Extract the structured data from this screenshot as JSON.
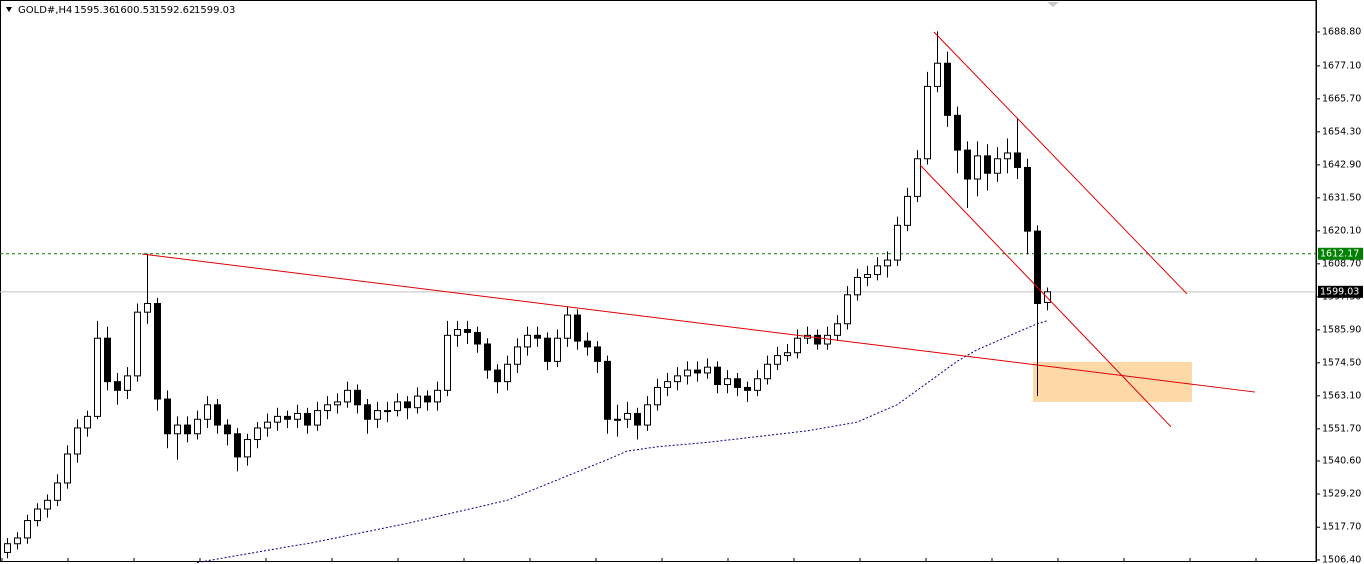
{
  "chart_data": {
    "type": "candlestick",
    "title": "GOLD#,H4",
    "ylim": [
      1505.0,
      1699.85
    ],
    "xlim": [
      -0.7,
      130.9
    ],
    "yticks": [
      {
        "value": 1688.8,
        "label": "1688.80"
      },
      {
        "value": 1677.1,
        "label": "1677.10"
      },
      {
        "value": 1665.7,
        "label": "1665.70"
      },
      {
        "value": 1654.3,
        "label": "1654.30"
      },
      {
        "value": 1642.9,
        "label": "1642.90"
      },
      {
        "value": 1631.5,
        "label": "1631.50"
      },
      {
        "value": 1620.1,
        "label": "1620.10"
      },
      {
        "value": 1608.7,
        "label": "1608.70"
      },
      {
        "value": 1597.3,
        "label": "1597.30"
      },
      {
        "value": 1585.9,
        "label": "1585.90"
      },
      {
        "value": 1574.5,
        "label": "1574.50"
      },
      {
        "value": 1563.1,
        "label": "1563.10"
      },
      {
        "value": 1551.7,
        "label": "1551.70"
      },
      {
        "value": 1540.6,
        "label": "1540.60"
      },
      {
        "value": 1529.2,
        "label": "1529.20"
      },
      {
        "value": 1517.7,
        "label": "1517.70"
      },
      {
        "value": 1506.4,
        "label": "1506.40"
      }
    ],
    "ohlc": [
      [
        1509,
        1514,
        1507,
        1512
      ],
      [
        1512,
        1516,
        1510,
        1514
      ],
      [
        1514,
        1522,
        1512,
        1520
      ],
      [
        1520,
        1526,
        1518,
        1524
      ],
      [
        1524,
        1529,
        1521,
        1527
      ],
      [
        1527,
        1536,
        1525,
        1533
      ],
      [
        1533,
        1546,
        1531,
        1543
      ],
      [
        1543,
        1555,
        1540,
        1552
      ],
      [
        1552,
        1558,
        1549,
        1556
      ],
      [
        1556,
        1589,
        1555,
        1583
      ],
      [
        1583,
        1587,
        1565,
        1568
      ],
      [
        1568,
        1571,
        1560,
        1565
      ],
      [
        1565,
        1573,
        1562,
        1570
      ],
      [
        1570,
        1595,
        1568,
        1592
      ],
      [
        1592,
        1612.2,
        1588,
        1595
      ],
      [
        1595,
        1597,
        1558,
        1562
      ],
      [
        1562,
        1565,
        1545,
        1550
      ],
      [
        1550,
        1556,
        1541,
        1553
      ],
      [
        1553,
        1556,
        1547,
        1550
      ],
      [
        1550,
        1558,
        1548,
        1555
      ],
      [
        1555,
        1563,
        1552,
        1560
      ],
      [
        1560,
        1562,
        1550,
        1553
      ],
      [
        1553,
        1555,
        1546,
        1550
      ],
      [
        1550,
        1552,
        1537,
        1542
      ],
      [
        1542,
        1550,
        1539,
        1548
      ],
      [
        1548,
        1554,
        1545,
        1552
      ],
      [
        1552,
        1557,
        1549,
        1554
      ],
      [
        1554,
        1559,
        1551,
        1556
      ],
      [
        1556,
        1558,
        1552,
        1555
      ],
      [
        1555,
        1560,
        1552,
        1557
      ],
      [
        1557,
        1559,
        1550,
        1553
      ],
      [
        1553,
        1561,
        1551,
        1558
      ],
      [
        1558,
        1563,
        1555,
        1560
      ],
      [
        1560,
        1564,
        1557,
        1561
      ],
      [
        1561,
        1568,
        1559,
        1565
      ],
      [
        1565,
        1567,
        1557,
        1560
      ],
      [
        1560,
        1562,
        1550,
        1555
      ],
      [
        1555,
        1561,
        1552,
        1558
      ],
      [
        1558,
        1561,
        1554,
        1558
      ],
      [
        1558,
        1564,
        1556,
        1561
      ],
      [
        1561,
        1563,
        1555,
        1559
      ],
      [
        1559,
        1566,
        1557,
        1563
      ],
      [
        1563,
        1565,
        1558,
        1561
      ],
      [
        1561,
        1568,
        1558,
        1565
      ],
      [
        1565,
        1589,
        1563,
        1584
      ],
      [
        1584,
        1589,
        1580,
        1586
      ],
      [
        1586,
        1589,
        1581,
        1585
      ],
      [
        1585,
        1587,
        1578,
        1581
      ],
      [
        1581,
        1583,
        1569,
        1572
      ],
      [
        1572,
        1574,
        1564,
        1568
      ],
      [
        1568,
        1577,
        1565,
        1574
      ],
      [
        1574,
        1583,
        1571,
        1580
      ],
      [
        1580,
        1587,
        1577,
        1584
      ],
      [
        1584,
        1587,
        1580,
        1583
      ],
      [
        1583,
        1585,
        1572,
        1575
      ],
      [
        1575,
        1586,
        1573,
        1583
      ],
      [
        1583,
        1594,
        1580,
        1591
      ],
      [
        1591,
        1593,
        1579,
        1582
      ],
      [
        1582,
        1585,
        1577,
        1580
      ],
      [
        1580,
        1582,
        1571,
        1575
      ],
      [
        1575,
        1577,
        1550,
        1555
      ],
      [
        1555,
        1560,
        1549,
        1555
      ],
      [
        1555,
        1561,
        1552,
        1557
      ],
      [
        1557,
        1559,
        1548,
        1553
      ],
      [
        1553,
        1563,
        1551,
        1560
      ],
      [
        1560,
        1569,
        1558,
        1566
      ],
      [
        1566,
        1571,
        1563,
        1568
      ],
      [
        1568,
        1573,
        1565,
        1570
      ],
      [
        1570,
        1575,
        1567,
        1572
      ],
      [
        1572,
        1575,
        1568,
        1571
      ],
      [
        1571,
        1576,
        1569,
        1573
      ],
      [
        1573,
        1575,
        1564,
        1567
      ],
      [
        1567,
        1572,
        1564,
        1569
      ],
      [
        1569,
        1571,
        1563,
        1566
      ],
      [
        1566,
        1568,
        1561,
        1565
      ],
      [
        1565,
        1572,
        1563,
        1569
      ],
      [
        1569,
        1577,
        1567,
        1574
      ],
      [
        1574,
        1580,
        1572,
        1577
      ],
      [
        1577,
        1581,
        1575,
        1578
      ],
      [
        1578,
        1586,
        1576,
        1583
      ],
      [
        1583,
        1587,
        1581,
        1584
      ],
      [
        1584,
        1586,
        1579,
        1581
      ],
      [
        1581,
        1587,
        1579,
        1584
      ],
      [
        1584,
        1591,
        1582,
        1588
      ],
      [
        1588,
        1601,
        1586,
        1598
      ],
      [
        1598,
        1607,
        1596,
        1604
      ],
      [
        1604,
        1608,
        1601,
        1605
      ],
      [
        1605,
        1611,
        1603,
        1608
      ],
      [
        1608,
        1613,
        1604,
        1610
      ],
      [
        1610,
        1625,
        1608,
        1622
      ],
      [
        1622,
        1635,
        1620,
        1632
      ],
      [
        1632,
        1648,
        1630,
        1645
      ],
      [
        1645,
        1675,
        1643,
        1670
      ],
      [
        1670,
        1689,
        1668,
        1678
      ],
      [
        1678,
        1682,
        1656,
        1660
      ],
      [
        1660,
        1663,
        1640,
        1648
      ],
      [
        1648,
        1651,
        1628,
        1638
      ],
      [
        1638,
        1651,
        1632,
        1646
      ],
      [
        1646,
        1650,
        1634,
        1640
      ],
      [
        1640,
        1649,
        1637,
        1645
      ],
      [
        1645,
        1652,
        1640,
        1647
      ],
      [
        1647,
        1659,
        1638,
        1642
      ],
      [
        1642,
        1645,
        1612,
        1620
      ],
      [
        1620,
        1622,
        1563,
        1595
      ],
      [
        1595.36,
        1600.53,
        1592.62,
        1599.03
      ]
    ],
    "ma": {
      "color": "#00008b",
      "values": [
        null,
        null,
        null,
        null,
        null,
        null,
        null,
        null,
        null,
        null,
        null,
        null,
        null,
        null,
        null,
        null,
        null,
        null,
        null,
        1505.5,
        1506.1,
        1506.7,
        1507.3,
        1507.9,
        1508.5,
        1509.1,
        1509.7,
        1510.3,
        1510.9,
        1511.5,
        1512,
        1512.7,
        1513.4,
        1514.1,
        1514.8,
        1515.5,
        1516.2,
        1516.9,
        1517.6,
        1518.3,
        1519,
        1519.8,
        1520.6,
        1521.4,
        1522.2,
        1523,
        1523.8,
        1524.6,
        1525.4,
        1526.2,
        1527,
        1528.4,
        1529.8,
        1531.2,
        1532.6,
        1534,
        1535.4,
        1536.8,
        1538.2,
        1539.6,
        1541,
        1542.5,
        1544,
        1544.5,
        1545,
        1545.5,
        1545.8,
        1546.1,
        1546.4,
        1546.7,
        1547,
        1547.4,
        1547.8,
        1548.2,
        1548.6,
        1549,
        1549.4,
        1549.8,
        1550.2,
        1550.6,
        1551,
        1551.6,
        1552.2,
        1552.8,
        1553.4,
        1554,
        1555.5,
        1557,
        1558.5,
        1560,
        1562.5,
        1565,
        1567.5,
        1570,
        1572.5,
        1575,
        1577,
        1579,
        1580.5,
        1582,
        1583.5,
        1585,
        1586.5,
        1588,
        1589
      ]
    },
    "trendlines": [
      {
        "x": [
          13.5,
          124.8
        ],
        "y": [
          1612.1,
          1564.4
        ],
        "color": "#e00000"
      },
      {
        "x": [
          92.7,
          118.0
        ],
        "y": [
          1688.8,
          1598.3
        ],
        "color": "#e00000"
      },
      {
        "x": [
          91.3,
          116.4
        ],
        "y": [
          1642.9,
          1552.4
        ],
        "color": "#e00000"
      }
    ],
    "zone": {
      "x": [
        102.6,
        118.5
      ],
      "y": [
        1561.0,
        1574.8
      ],
      "color": "#fdd9a8"
    },
    "hline": {
      "value": 1612.17,
      "label": "1612.17",
      "color": "#008000"
    },
    "last_line_color": "#c0c0c0"
  }
}
